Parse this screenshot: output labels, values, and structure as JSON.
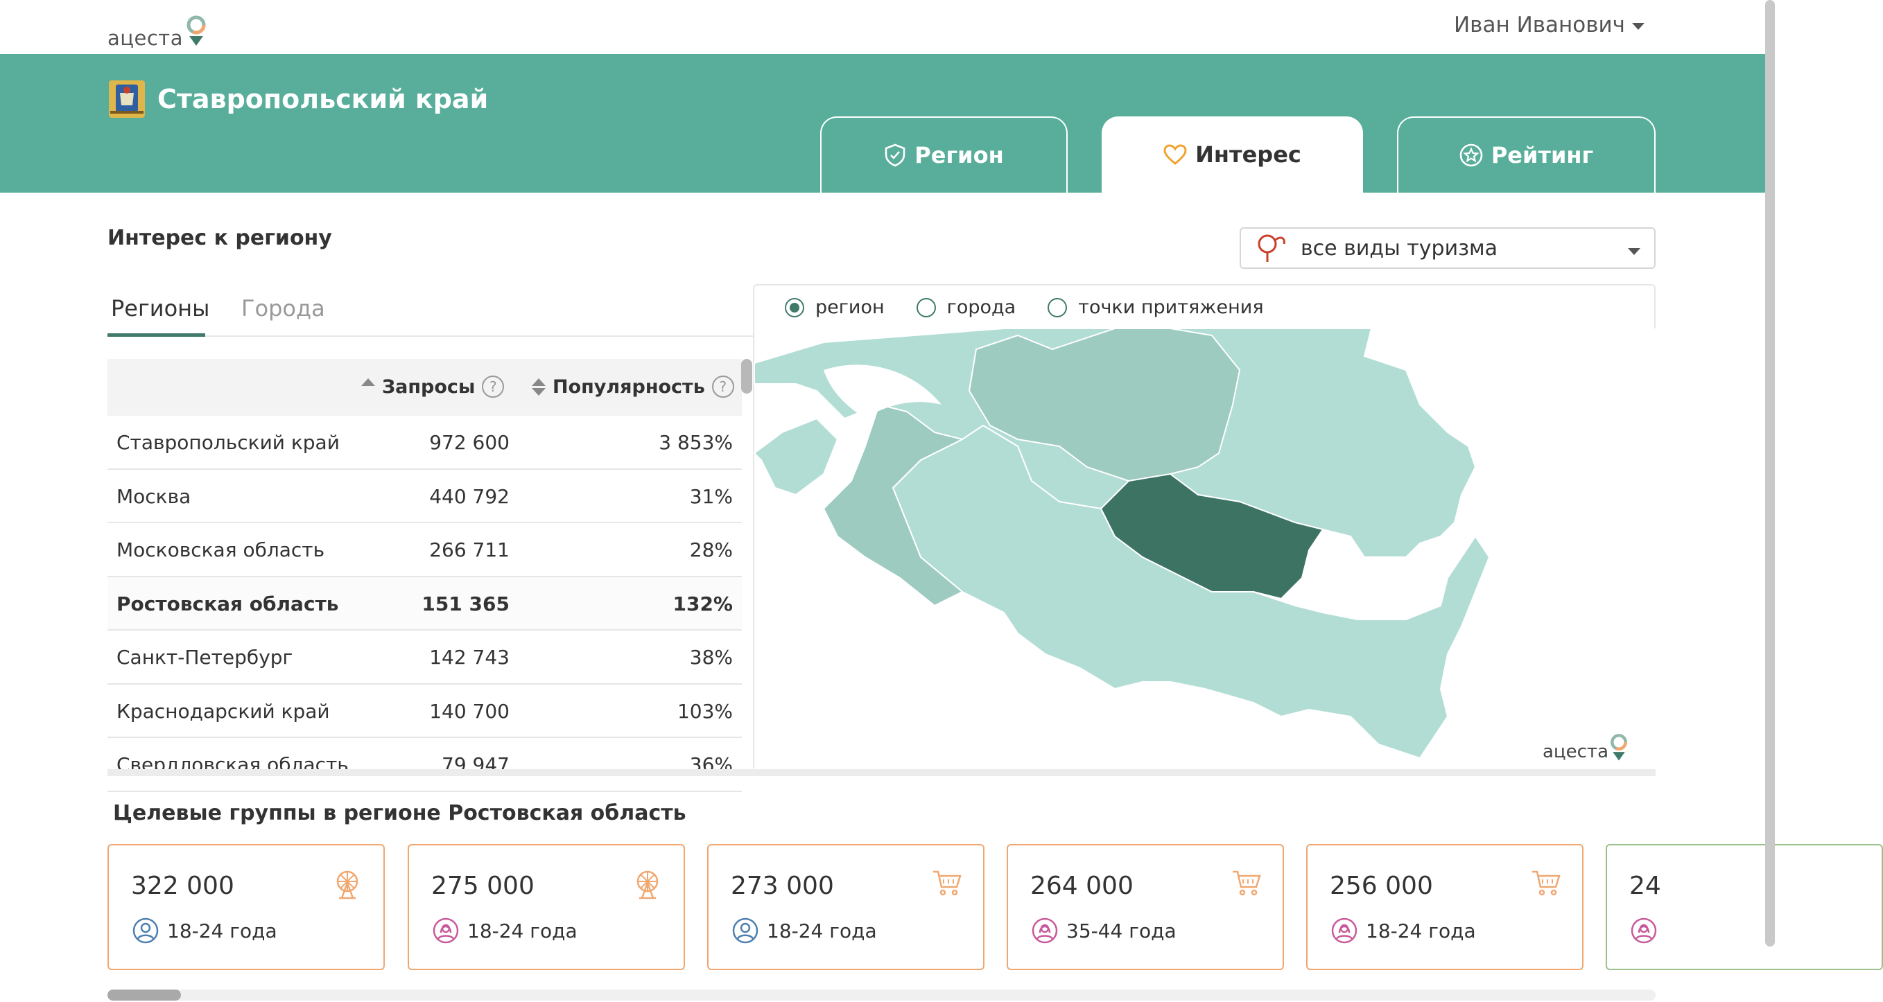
{
  "header": {
    "logo_text": "ацеста",
    "user_name": "Иван Иванович"
  },
  "region": {
    "name": "Ставропольский край"
  },
  "tabs": [
    {
      "label": "Регион",
      "icon": "shield-check-icon"
    },
    {
      "label": "Интерес",
      "icon": "heart-icon"
    },
    {
      "label": "Рейтинг",
      "icon": "star-badge-icon"
    }
  ],
  "interest": {
    "title": "Интерес к региону",
    "tourism_select": "все виды туризма",
    "subtabs": [
      "Регионы",
      "Города"
    ],
    "table": {
      "col_requests": "Запросы",
      "col_popularity": "Популярность",
      "help": "?",
      "rows": [
        {
          "name": "Ставропольский край",
          "requests": "972 600",
          "popularity": "3 853%"
        },
        {
          "name": "Москва",
          "requests": "440 792",
          "popularity": "31%"
        },
        {
          "name": "Московская область",
          "requests": "266 711",
          "popularity": "28%"
        },
        {
          "name": "Ростовская область",
          "requests": "151 365",
          "popularity": "132%"
        },
        {
          "name": "Санкт-Петербург",
          "requests": "142 743",
          "popularity": "38%"
        },
        {
          "name": "Краснодарский край",
          "requests": "140 700",
          "popularity": "103%"
        },
        {
          "name": "Свердловская область",
          "requests": "79 947",
          "popularity": "36%"
        }
      ]
    },
    "map": {
      "radios": [
        "регион",
        "города",
        "точки притяжения"
      ],
      "selected_radio": "регион",
      "logo_text": "ацеста",
      "colors": {
        "light": "#b2ddd5",
        "mid": "#9dcbc0",
        "highlight": "#3d7363"
      }
    }
  },
  "groups": {
    "title": "Целевые группы в регионе Ростовская область",
    "cards": [
      {
        "value": "322 000",
        "age": "18-24 года",
        "icon": "ferris-wheel-icon",
        "gender": "male"
      },
      {
        "value": "275 000",
        "age": "18-24 года",
        "icon": "ferris-wheel-icon",
        "gender": "female"
      },
      {
        "value": "273 000",
        "age": "18-24 года",
        "icon": "cart-icon",
        "gender": "male"
      },
      {
        "value": "264 000",
        "age": "35-44 года",
        "icon": "cart-icon",
        "gender": "female"
      },
      {
        "value": "256 000",
        "age": "18-24 года",
        "icon": "cart-icon",
        "gender": "female"
      },
      {
        "value": "24",
        "age": "",
        "icon": "",
        "gender": "female"
      }
    ]
  },
  "colors": {
    "brand_green": "#58ae9a",
    "accent_dark": "#3f7a6b",
    "card_border": "#f0a770",
    "icon_orange": "#f0a770",
    "female_icon": "#c85a9b",
    "male_icon": "#4d7fb0"
  }
}
